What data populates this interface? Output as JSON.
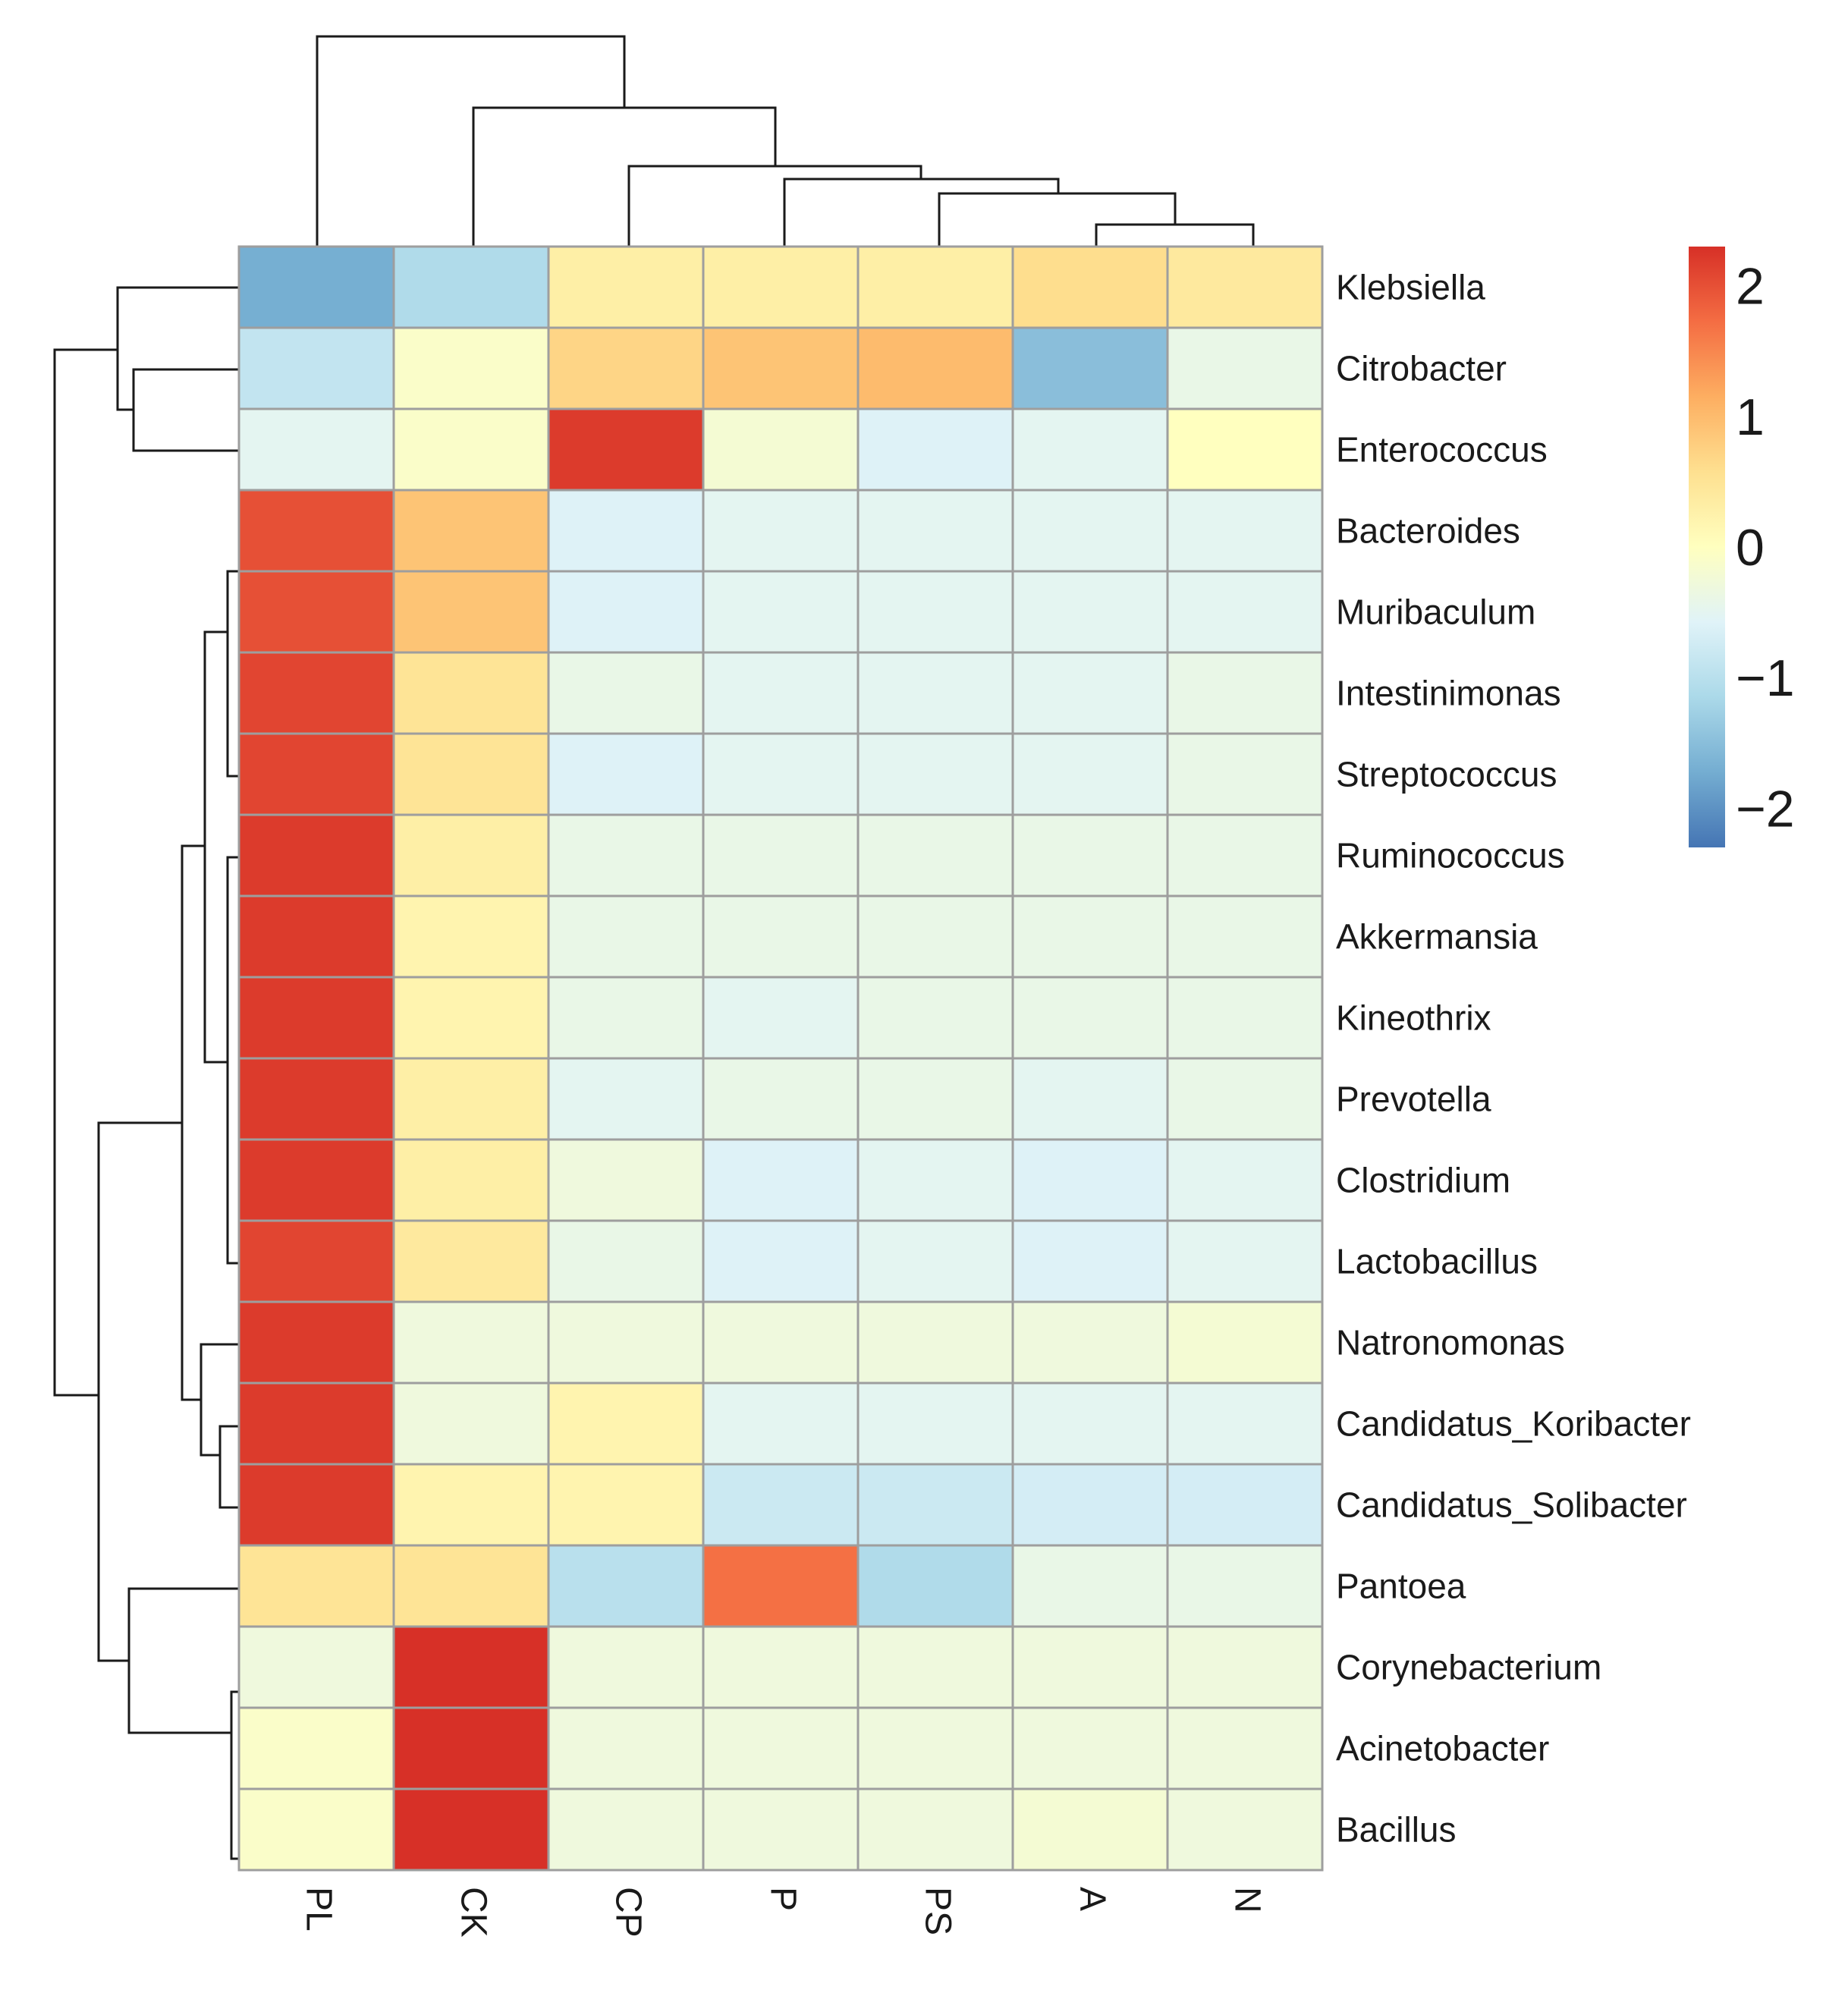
{
  "chart_data": {
    "type": "heatmap",
    "title": "",
    "columns": [
      "PL",
      "CK",
      "CP",
      "P",
      "PS",
      "A",
      "N"
    ],
    "rows": [
      "Klebsiella",
      "Citrobacter",
      "Enterococcus",
      "Bacteroides",
      "Muribaculum",
      "Intestinimonas",
      "Streptococcus",
      "Ruminococcus",
      "Akkermansia",
      "Kineothrix",
      "Prevotella",
      "Clostridium",
      "Lactobacillus",
      "Natronomonas",
      "Candidatus_Koribacter",
      "Candidatus_Solibacter",
      "Pantoea",
      "Corynebacterium",
      "Acinetobacter",
      "Bacillus"
    ],
    "values": [
      [
        -1.7,
        -1.1,
        0.3,
        0.3,
        0.3,
        0.6,
        0.4
      ],
      [
        -0.9,
        -0.1,
        0.7,
        0.9,
        1.0,
        -1.5,
        -0.4
      ],
      [
        -0.5,
        -0.1,
        2.2,
        -0.2,
        -0.6,
        -0.5,
        0.0
      ],
      [
        2.0,
        0.9,
        -0.6,
        -0.5,
        -0.5,
        -0.5,
        -0.5
      ],
      [
        2.0,
        0.9,
        -0.6,
        -0.5,
        -0.5,
        -0.5,
        -0.5
      ],
      [
        2.1,
        0.5,
        -0.4,
        -0.5,
        -0.5,
        -0.5,
        -0.4
      ],
      [
        2.1,
        0.5,
        -0.6,
        -0.5,
        -0.5,
        -0.5,
        -0.4
      ],
      [
        2.2,
        0.3,
        -0.4,
        -0.4,
        -0.4,
        -0.4,
        -0.4
      ],
      [
        2.2,
        0.2,
        -0.4,
        -0.4,
        -0.4,
        -0.4,
        -0.4
      ],
      [
        2.2,
        0.2,
        -0.4,
        -0.5,
        -0.4,
        -0.4,
        -0.4
      ],
      [
        2.2,
        0.3,
        -0.5,
        -0.4,
        -0.4,
        -0.5,
        -0.4
      ],
      [
        2.2,
        0.3,
        -0.3,
        -0.6,
        -0.5,
        -0.6,
        -0.5
      ],
      [
        2.1,
        0.4,
        -0.4,
        -0.6,
        -0.5,
        -0.6,
        -0.5
      ],
      [
        2.2,
        -0.3,
        -0.3,
        -0.3,
        -0.3,
        -0.3,
        -0.2
      ],
      [
        2.2,
        -0.3,
        0.2,
        -0.5,
        -0.5,
        -0.5,
        -0.5
      ],
      [
        2.2,
        0.2,
        0.2,
        -0.8,
        -0.8,
        -0.7,
        -0.7
      ],
      [
        0.5,
        0.5,
        -1.0,
        1.7,
        -1.1,
        -0.4,
        -0.4
      ],
      [
        -0.3,
        2.3,
        -0.3,
        -0.3,
        -0.3,
        -0.3,
        -0.3
      ],
      [
        -0.1,
        2.3,
        -0.3,
        -0.3,
        -0.3,
        -0.3,
        -0.3
      ],
      [
        -0.1,
        2.3,
        -0.3,
        -0.3,
        -0.3,
        -0.2,
        -0.3
      ]
    ],
    "color_scale": {
      "low": "#4575B4",
      "mid": "#FFFFBF",
      "high": "#D73027",
      "stops": [
        "#4575B4",
        "#74ADD1",
        "#ABD9E9",
        "#E0F3F8",
        "#FFFFBF",
        "#FEE090",
        "#FDAE61",
        "#F46D43",
        "#D73027"
      ],
      "range": [
        -2.3,
        2.3
      ]
    },
    "legend_ticks": [
      "2",
      "1",
      "0",
      "−1",
      "−2"
    ],
    "legend_tick_values": [
      2,
      1,
      0,
      -1,
      -2
    ],
    "legend_position": "right",
    "grid_color": "#9E9E9E",
    "dendrogram_color": "#1A1A1A",
    "column_dendrogram": "PL,((CK),(CP,(P,(PS,(A,N)))))",
    "row_dendrogram": "((Klebsiella,(Citrobacter,Enterococcus)),((Bacteroides..Candidatus_Solibacter),(Pantoea,(Corynebacterium,Acinetobacter,Bacillus))))"
  }
}
